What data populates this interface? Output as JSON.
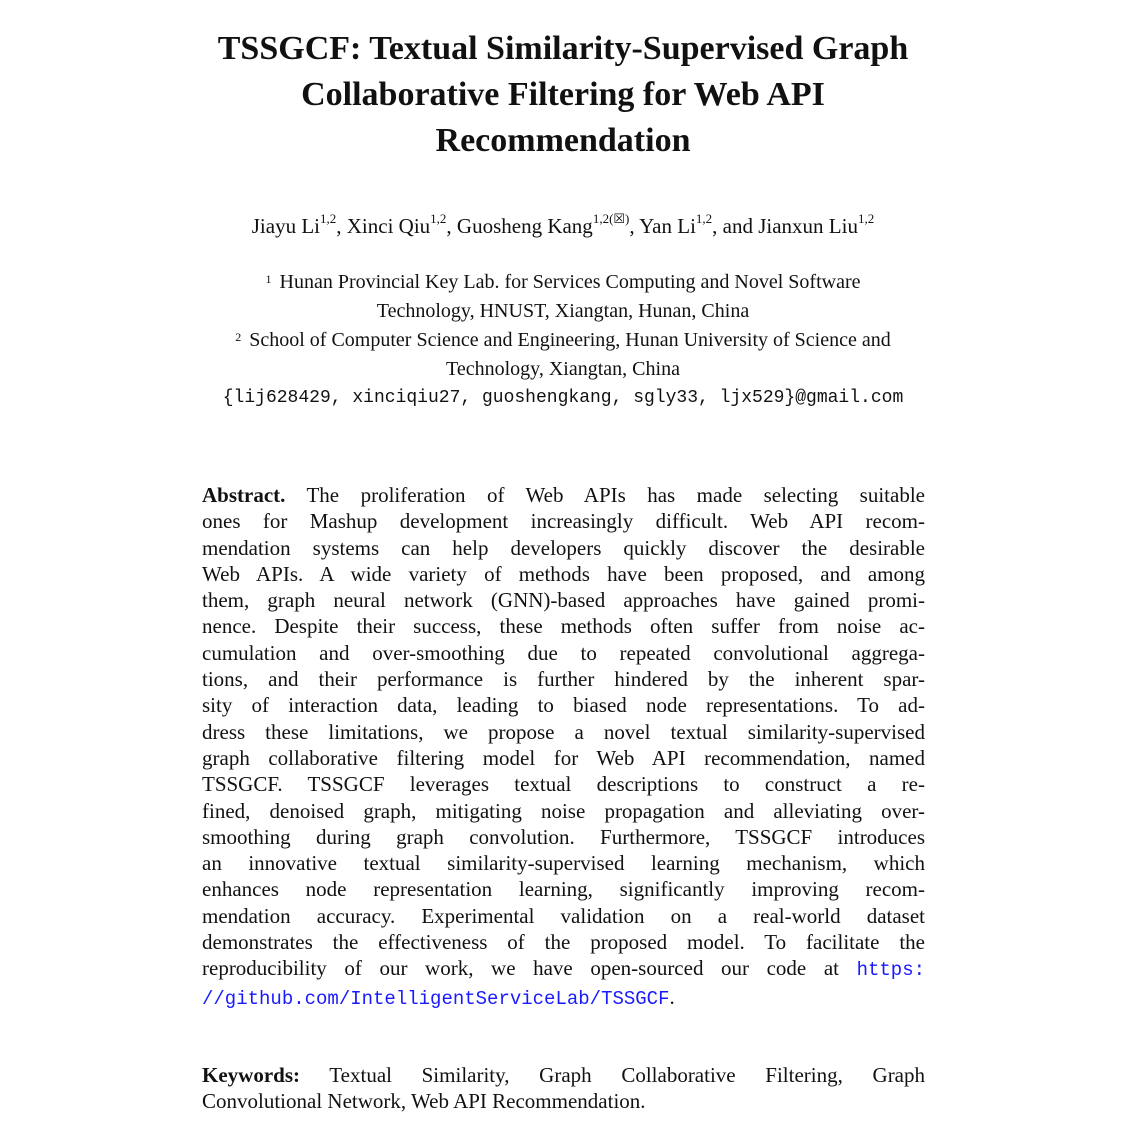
{
  "title": {
    "lines": [
      "TSSGCF: Textual Similarity-Supervised Graph",
      "Collaborative Filtering for Web API",
      "Recommendation"
    ]
  },
  "authors": [
    {
      "name": "Jiayu Li",
      "sup": "1,2",
      "sep": ", "
    },
    {
      "name": "Xinci Qiu",
      "sup": "1,2",
      "sep": ", "
    },
    {
      "name": "Guosheng Kang",
      "sup": "1,2(☒)",
      "sep": ", "
    },
    {
      "name": "Yan Li",
      "sup": "1,2",
      "sep": ", and "
    },
    {
      "name": "Jianxun Liu",
      "sup": "1,2",
      "sep": ""
    }
  ],
  "affiliations": [
    {
      "mark": "1",
      "line1": "Hunan Provincial Key Lab. for Services Computing and Novel Software",
      "line2": "Technology, HNUST, Xiangtan, Hunan, China"
    },
    {
      "mark": "2",
      "line1": "School of Computer Science and Engineering, Hunan University of Science and",
      "line2": "Technology, Xiangtan, China"
    }
  ],
  "email": "{lij628429, xinciqiu27, guoshengkang, sgly33, ljx529}@gmail.com",
  "abstract": {
    "label": "Abstract.",
    "lines": [
      "The proliferation of Web APIs has made selecting suitable",
      "ones for Mashup development increasingly difficult. Web API recom-",
      "mendation systems can help developers quickly discover the desirable",
      "Web APIs. A wide variety of methods have been proposed, and among",
      "them, graph neural network (GNN)-based approaches have gained promi-",
      "nence. Despite their success, these methods often suffer from noise ac-",
      "cumulation and over-smoothing due to repeated convolutional aggrega-",
      "tions, and their performance is further hindered by the inherent spar-",
      "sity of interaction data, leading to biased node representations. To ad-",
      "dress these limitations, we propose a novel textual similarity-supervised",
      "graph collaborative filtering model for Web API recommendation, named",
      "TSSGCF. TSSGCF leverages textual descriptions to construct a re-",
      "fined, denoised graph, mitigating noise propagation and alleviating over-",
      "smoothing during graph convolution. Furthermore, TSSGCF introduces",
      "an innovative textual similarity-supervised learning mechanism, which",
      "enhances node representation learning, significantly improving recom-",
      "mendation accuracy. Experimental validation on a real-world dataset",
      "demonstrates the effectiveness of the proposed model. To facilitate the",
      "reproducibility of our work, we have open-sourced our code at"
    ],
    "link_part1": "https:",
    "link_part2": "//github.com/IntelligentServiceLab/TSSGCF",
    "end": "."
  },
  "keywords": {
    "label": "Keywords:",
    "line1": "Textual Similarity, Graph Collaborative Filtering, Graph",
    "line2": "Convolutional Network, Web API Recommendation."
  },
  "colors": {
    "link": "#1a1aff",
    "text": "#111111"
  }
}
